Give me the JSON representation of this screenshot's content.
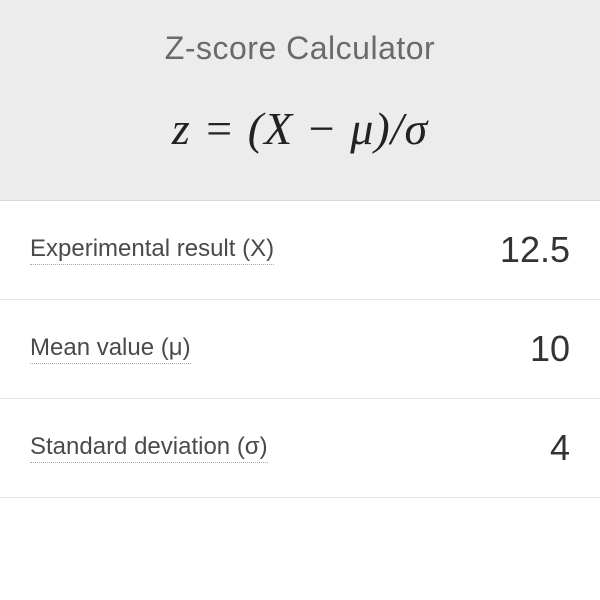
{
  "calculator": {
    "title": "Z-score Calculator",
    "formula": "z = (X − μ)/σ",
    "rows": [
      {
        "label": "Experimental result (X)",
        "value": "12.5"
      },
      {
        "label": "Mean value (μ)",
        "value": "10"
      },
      {
        "label": "Standard deviation (σ)",
        "value": "4"
      }
    ],
    "colors": {
      "header_bg": "#ececec",
      "row_bg": "#ffffff",
      "border": "#e5e5e5",
      "title_color": "#6a6a6a",
      "formula_color": "#222222",
      "label_color": "#4a4a4a",
      "value_color": "#333333"
    },
    "typography": {
      "title_fontsize": 32,
      "formula_fontsize": 46,
      "label_fontsize": 24,
      "value_fontsize": 36
    }
  }
}
